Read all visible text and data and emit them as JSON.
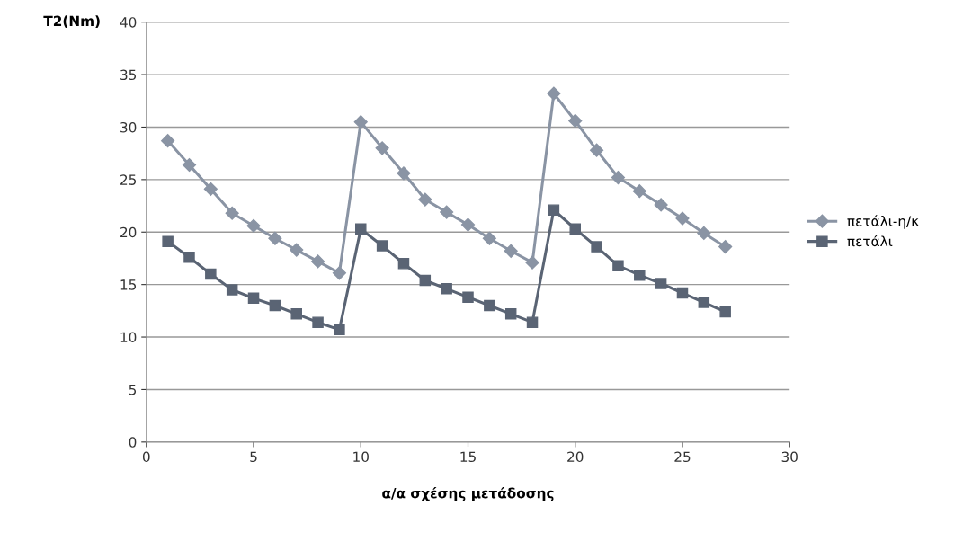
{
  "chart_data": {
    "type": "line",
    "xlabel": "α/α σχέσης μετάδοσης",
    "ylabel": "T2(Nm)",
    "x": [
      1,
      2,
      3,
      4,
      5,
      6,
      7,
      8,
      9,
      10,
      11,
      12,
      13,
      14,
      15,
      16,
      17,
      18,
      19,
      20,
      21,
      22,
      23,
      24,
      25,
      26,
      27
    ],
    "series": [
      {
        "name": "πετάλι-η/κ",
        "color": "#8a94a4",
        "marker": "diamond",
        "values": [
          28.7,
          26.4,
          24.1,
          21.8,
          20.6,
          19.4,
          18.3,
          17.2,
          16.1,
          30.5,
          28.0,
          25.6,
          23.1,
          21.9,
          20.7,
          19.4,
          18.2,
          17.1,
          33.2,
          30.6,
          27.8,
          25.2,
          23.9,
          22.6,
          21.3,
          19.9,
          18.6
        ]
      },
      {
        "name": "πετάλι",
        "color": "#5a6474",
        "marker": "square",
        "values": [
          19.1,
          17.6,
          16.0,
          14.5,
          13.7,
          13.0,
          12.2,
          11.4,
          10.7,
          20.3,
          18.7,
          17.0,
          15.4,
          14.6,
          13.8,
          13.0,
          12.2,
          11.4,
          22.1,
          20.3,
          18.6,
          16.8,
          15.9,
          15.1,
          14.2,
          13.3,
          12.4
        ]
      }
    ],
    "xlim": [
      0,
      30
    ],
    "xticks": [
      0,
      5,
      10,
      15,
      20,
      25,
      30
    ],
    "ylim": [
      0,
      40
    ],
    "yticks": [
      0,
      5,
      10,
      15,
      20,
      25,
      30,
      35,
      40
    ],
    "grid": "y",
    "legend": "right",
    "line_style": "solid"
  }
}
